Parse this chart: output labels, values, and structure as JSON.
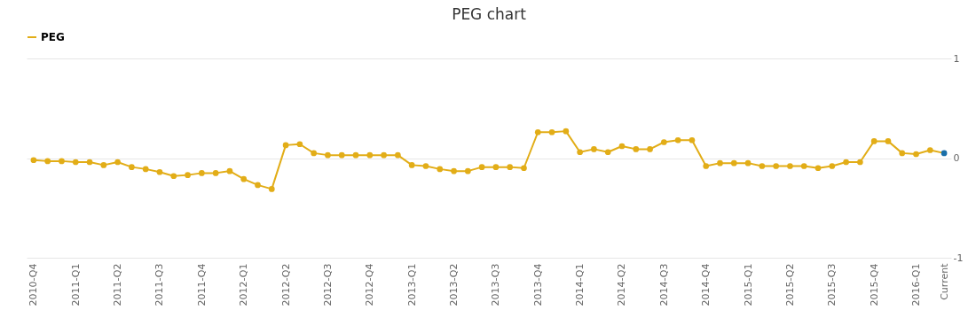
{
  "chart_data": {
    "type": "line",
    "title": "PEG chart",
    "categories": [
      "2010-Q4",
      null,
      null,
      "2011-Q1",
      null,
      null,
      "2011-Q2",
      null,
      null,
      "2011-Q3",
      null,
      null,
      "2011-Q4",
      null,
      null,
      "2012-Q1",
      null,
      null,
      "2012-Q2",
      null,
      null,
      "2012-Q3",
      null,
      null,
      "2012-Q4",
      null,
      null,
      "2013-Q1",
      null,
      null,
      "2013-Q2",
      null,
      null,
      "2013-Q3",
      null,
      null,
      "2013-Q4",
      null,
      null,
      "2014-Q1",
      null,
      null,
      "2014-Q2",
      null,
      null,
      "2014-Q3",
      null,
      null,
      "2014-Q4",
      null,
      null,
      "2015-Q1",
      null,
      null,
      "2015-Q2",
      null,
      null,
      "2015-Q3",
      null,
      null,
      "2015-Q4",
      null,
      null,
      "2016-Q1",
      null,
      "Current"
    ],
    "series": [
      {
        "name": "PEG",
        "color": "#e2ad17",
        "colors": [
          "#e2ad17",
          "#e2ad17",
          "#e2ad17",
          "#e2ad17",
          "#e2ad17",
          "#e2ad17",
          "#e2ad17",
          "#e2ad17",
          "#e2ad17",
          "#e2ad17",
          "#e2ad17",
          "#e2ad17",
          "#e2ad17",
          "#e2ad17",
          "#e2ad17",
          "#e2ad17",
          "#e2ad17",
          "#e2ad17",
          "#e2ad17",
          "#e2ad17",
          "#e2ad17",
          "#e2ad17",
          "#e2ad17",
          "#e2ad17",
          "#e2ad17",
          "#e2ad17",
          "#e2ad17",
          "#e2ad17",
          "#e2ad17",
          "#e2ad17",
          "#e2ad17",
          "#e2ad17",
          "#e2ad17",
          "#e2ad17",
          "#e2ad17",
          "#e2ad17",
          "#e2ad17",
          "#e2ad17",
          "#e2ad17",
          "#e2ad17",
          "#e2ad17",
          "#e2ad17",
          "#e2ad17",
          "#e2ad17",
          "#e2ad17",
          "#e2ad17",
          "#e2ad17",
          "#e2ad17",
          "#e2ad17",
          "#e2ad17",
          "#e2ad17",
          "#e2ad17",
          "#e2ad17",
          "#e2ad17",
          "#e2ad17",
          "#e2ad17",
          "#e2ad17",
          "#e2ad17",
          "#e2ad17",
          "#e2ad17",
          "#e2ad17",
          "#e2ad17",
          "#e2ad17",
          "#e2ad17",
          "#e2ad17",
          "#1a6fa8"
        ],
        "values": [
          -0.02,
          -0.03,
          -0.03,
          -0.04,
          -0.04,
          -0.07,
          -0.04,
          -0.09,
          -0.11,
          -0.14,
          -0.18,
          -0.17,
          -0.15,
          -0.15,
          -0.13,
          -0.21,
          -0.27,
          -0.31,
          0.13,
          0.14,
          0.05,
          0.03,
          0.03,
          0.03,
          0.03,
          0.03,
          0.03,
          -0.07,
          -0.08,
          -0.11,
          -0.13,
          -0.13,
          -0.09,
          -0.09,
          -0.09,
          -0.1,
          0.26,
          0.26,
          0.27,
          0.06,
          0.09,
          0.06,
          0.12,
          0.09,
          0.09,
          0.16,
          0.18,
          0.18,
          -0.08,
          -0.05,
          -0.05,
          -0.05,
          -0.08,
          -0.08,
          -0.08,
          -0.08,
          -0.1,
          -0.08,
          -0.04,
          -0.04,
          0.17,
          0.17,
          0.05,
          0.04,
          0.08,
          0.05
        ]
      }
    ],
    "ylim": [
      -1,
      1
    ],
    "yticks": [
      -1,
      0,
      1
    ],
    "grid": "y",
    "legend": "top",
    "marker": "circle",
    "line_style": "solid"
  }
}
